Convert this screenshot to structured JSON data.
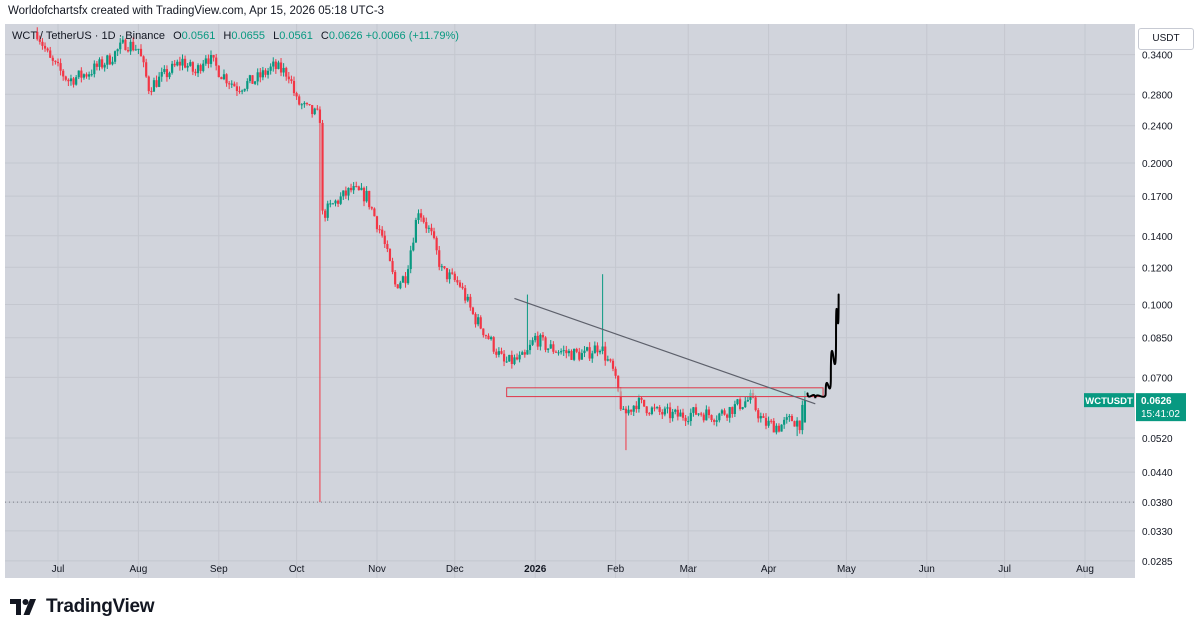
{
  "header": {
    "caption": "Worldofchartsfx created with TradingView.com, Apr 15, 2026 05:18 UTC-3"
  },
  "legend": {
    "symbol": "WCT / TetherUS · 1D · Binance",
    "open_label": "O",
    "open": "0.0561",
    "high_label": "H",
    "high": "0.0655",
    "low_label": "L",
    "low": "0.0561",
    "close_label": "C",
    "close": "0.0626",
    "change": "+0.0066 (+11.79%)"
  },
  "price_axis": {
    "unit": "USDT"
  },
  "price_tag": {
    "symbol": "WCTUSDT",
    "price": "0.0626",
    "countdown": "15:41:02"
  },
  "footer": {
    "brand": "TradingView"
  },
  "colors": {
    "up": "#089981",
    "down": "#f23645",
    "background": "#d1d4dc",
    "zone_fill": "#b2dfdb",
    "trendline": "#5d606b",
    "projection": "#000000"
  },
  "chart_data": {
    "type": "candlestick",
    "scale": "log",
    "y_ticks": [
      "0.3400",
      "0.2800",
      "0.2400",
      "0.2000",
      "0.1700",
      "0.1400",
      "0.1200",
      "0.1000",
      "0.0850",
      "0.0700",
      "0.0520",
      "0.0440",
      "0.0380",
      "0.0330",
      "0.0285"
    ],
    "x_ticks": [
      "Jul",
      "Aug",
      "Sep",
      "Oct",
      "Nov",
      "Dec",
      "2026",
      "Feb",
      "Mar",
      "Apr",
      "May",
      "Jun",
      "Jul",
      "Aug"
    ],
    "x_tick_dates": [
      "2025-07-01",
      "2025-08-01",
      "2025-09-01",
      "2025-10-01",
      "2025-11-01",
      "2025-12-01",
      "2026-01-01",
      "2026-02-01",
      "2026-03-01",
      "2026-04-01",
      "2026-05-01",
      "2026-06-01",
      "2026-07-01",
      "2026-08-01"
    ],
    "first_date": "2025-06-23",
    "close_path": [
      [
        "2025-06-23",
        0.38
      ],
      [
        "2025-06-28",
        0.33
      ],
      [
        "2025-07-05",
        0.3
      ],
      [
        "2025-07-12",
        0.31
      ],
      [
        "2025-07-20",
        0.33
      ],
      [
        "2025-07-27",
        0.36
      ],
      [
        "2025-08-01",
        0.35
      ],
      [
        "2025-08-05",
        0.29
      ],
      [
        "2025-08-12",
        0.31
      ],
      [
        "2025-08-18",
        0.33
      ],
      [
        "2025-08-23",
        0.31
      ],
      [
        "2025-08-27",
        0.34
      ],
      [
        "2025-09-02",
        0.31
      ],
      [
        "2025-09-08",
        0.29
      ],
      [
        "2025-09-15",
        0.3
      ],
      [
        "2025-09-22",
        0.32
      ],
      [
        "2025-09-28",
        0.31
      ],
      [
        "2025-10-01",
        0.27
      ],
      [
        "2025-10-05",
        0.26
      ],
      [
        "2025-10-10",
        0.25
      ],
      [
        "2025-10-11",
        0.155
      ],
      [
        "2025-10-16",
        0.165
      ],
      [
        "2025-10-22",
        0.175
      ],
      [
        "2025-10-28",
        0.17
      ],
      [
        "2025-11-03",
        0.14
      ],
      [
        "2025-11-08",
        0.11
      ],
      [
        "2025-11-12",
        0.115
      ],
      [
        "2025-11-17",
        0.16
      ],
      [
        "2025-11-22",
        0.14
      ],
      [
        "2025-11-26",
        0.118
      ],
      [
        "2025-12-03",
        0.11
      ],
      [
        "2025-12-08",
        0.095
      ],
      [
        "2025-12-14",
        0.085
      ],
      [
        "2025-12-20",
        0.075
      ],
      [
        "2025-12-24",
        0.076
      ],
      [
        "2025-12-28",
        0.077
      ],
      [
        "2026-01-01",
        0.085
      ],
      [
        "2026-01-06",
        0.081
      ],
      [
        "2026-01-13",
        0.079
      ],
      [
        "2026-01-20",
        0.078
      ],
      [
        "2026-01-26",
        0.082
      ],
      [
        "2026-01-31",
        0.072
      ],
      [
        "2026-02-04",
        0.058
      ],
      [
        "2026-02-09",
        0.062
      ],
      [
        "2026-02-17",
        0.059
      ],
      [
        "2026-02-25",
        0.058
      ],
      [
        "2026-03-05",
        0.059
      ],
      [
        "2026-03-12",
        0.058
      ],
      [
        "2026-03-20",
        0.061
      ],
      [
        "2026-03-25",
        0.063
      ],
      [
        "2026-03-30",
        0.056
      ],
      [
        "2026-04-05",
        0.055
      ],
      [
        "2026-04-10",
        0.057
      ],
      [
        "2026-04-13",
        0.056
      ],
      [
        "2026-04-15",
        0.0626
      ]
    ],
    "spikes": [
      {
        "date": "2025-10-10",
        "low": 0.038
      },
      {
        "date": "2025-12-29",
        "high": 0.105
      },
      {
        "date": "2026-01-27",
        "high": 0.116
      },
      {
        "date": "2026-02-05",
        "low": 0.049
      },
      {
        "date": "2026-04-12",
        "low": 0.0525
      }
    ],
    "last_candle": {
      "date": "2026-04-15",
      "open": 0.0561,
      "high": 0.0655,
      "low": 0.0561,
      "close": 0.0626
    },
    "zone": {
      "x0": "2025-12-21",
      "x1": "2026-04-22",
      "y_low": 0.0637,
      "y_high": 0.0665
    },
    "trendline": {
      "x0": "2025-12-24",
      "y0": 0.103,
      "x1": "2026-04-19",
      "y1": 0.0615
    },
    "projection": [
      [
        "2026-04-16",
        0.0647
      ],
      [
        "2026-04-19",
        0.0632
      ],
      [
        "2026-04-23",
        0.0645
      ],
      [
        "2026-04-25",
        0.07
      ],
      [
        "2026-04-27",
        0.085
      ],
      [
        "2026-04-28",
        0.105
      ]
    ],
    "dotted_level": 0.038,
    "y_range": [
      0.0262,
      0.395
    ]
  }
}
